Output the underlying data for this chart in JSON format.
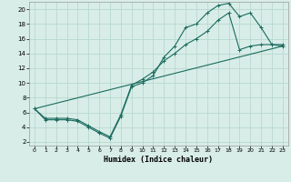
{
  "xlabel": "Humidex (Indice chaleur)",
  "ylabel": "",
  "background_color": "#d8ede8",
  "grid_color": "#b8d8d0",
  "line_color": "#1a6b5e",
  "xlim": [
    -0.5,
    23.5
  ],
  "ylim": [
    1.5,
    21
  ],
  "xticks": [
    0,
    1,
    2,
    3,
    4,
    5,
    6,
    7,
    8,
    9,
    10,
    11,
    12,
    13,
    14,
    15,
    16,
    17,
    18,
    19,
    20,
    21,
    22,
    23
  ],
  "yticks": [
    2,
    4,
    6,
    8,
    10,
    12,
    14,
    16,
    18,
    20
  ],
  "line1_x": [
    0,
    1,
    2,
    3,
    4,
    5,
    6,
    7,
    8,
    9,
    10,
    11,
    12,
    13,
    14,
    15,
    16,
    17,
    18,
    19,
    20,
    21,
    22,
    23
  ],
  "line1_y": [
    6.5,
    5.0,
    5.0,
    5.0,
    4.8,
    4.0,
    3.2,
    2.5,
    5.5,
    9.5,
    10.0,
    11.0,
    13.5,
    15.0,
    17.5,
    18.0,
    19.5,
    20.5,
    20.8,
    19.0,
    19.5,
    17.5,
    15.2,
    15.0
  ],
  "line2_x": [
    0,
    1,
    2,
    3,
    4,
    5,
    6,
    7,
    8,
    9,
    10,
    11,
    12,
    13,
    14,
    15,
    16,
    17,
    18,
    19,
    20,
    21,
    22,
    23
  ],
  "line2_y": [
    6.5,
    5.2,
    5.2,
    5.2,
    5.0,
    4.2,
    3.4,
    2.7,
    5.7,
    9.7,
    10.5,
    11.5,
    13.0,
    14.0,
    15.2,
    16.0,
    17.0,
    18.5,
    19.5,
    14.5,
    15.0,
    15.2,
    15.2,
    15.2
  ],
  "line3_x": [
    0,
    23
  ],
  "line3_y": [
    6.5,
    15.0
  ]
}
